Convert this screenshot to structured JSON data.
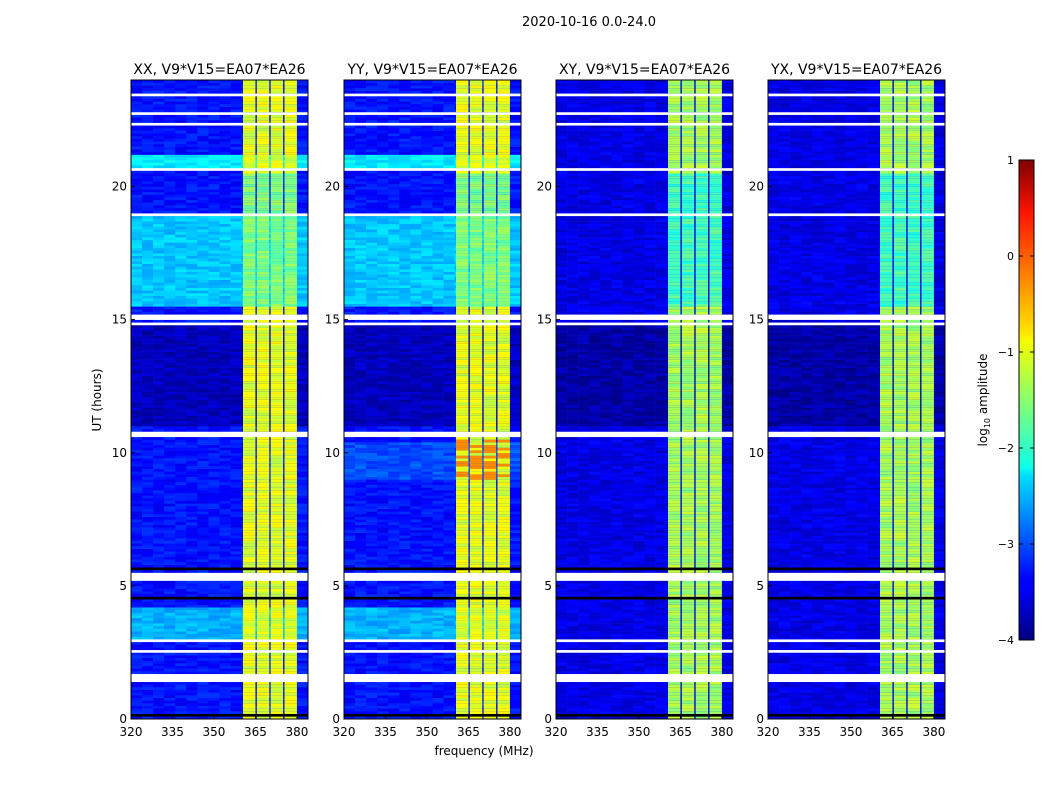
{
  "chart_data": {
    "type": "heatmap",
    "title": "2020-10-16 0.0-24.0",
    "xlabel": "frequency (MHz)",
    "ylabel": "UT (hours)",
    "xlim": [
      320,
      384
    ],
    "ylim": [
      0,
      24
    ],
    "xticks": [
      320,
      335,
      350,
      365,
      380
    ],
    "yticks": [
      0,
      5,
      10,
      15,
      20
    ],
    "colorbar": {
      "label": "log10 amplitude",
      "label_main": "log",
      "label_sub": "10",
      "label_rest": " amplitude",
      "range": [
        -4,
        1
      ],
      "ticks": [
        1,
        0,
        -1,
        -2,
        -3,
        -4
      ],
      "tick_labels": [
        "1",
        "0",
        "−1",
        "−2",
        "−3",
        "−4"
      ],
      "colormap": "jet"
    },
    "rfi_bands_mhz": [
      [
        360.5,
        365
      ],
      [
        365.5,
        370
      ],
      [
        370.5,
        375
      ],
      [
        375.5,
        380
      ]
    ],
    "flagged_times_h": [
      [
        1.4,
        1.7
      ],
      [
        2.5,
        2.6
      ],
      [
        2.95,
        3.05
      ],
      [
        4.3,
        4.35
      ],
      [
        5.2,
        5.5
      ],
      [
        7.6,
        7.65
      ],
      [
        9.8,
        9.85
      ],
      [
        10.65,
        10.8
      ],
      [
        14.85,
        14.9
      ],
      [
        15.05,
        15.2
      ],
      [
        15.5,
        15.55
      ],
      [
        18.9,
        19.0
      ],
      [
        19.3,
        19.35
      ],
      [
        20.65,
        20.75
      ],
      [
        21.8,
        21.85
      ],
      [
        22.3,
        22.4
      ],
      [
        22.75,
        22.85
      ],
      [
        23.4,
        23.5
      ]
    ],
    "zero_times_h": [
      [
        0.15,
        0.2
      ],
      [
        4.55,
        4.6
      ],
      [
        5.65,
        5.75
      ],
      [
        10.9,
        10.95
      ],
      [
        11.3,
        11.35
      ],
      [
        12.6,
        12.65
      ],
      [
        13.2,
        13.25
      ],
      [
        13.9,
        13.95
      ],
      [
        14.5,
        14.55
      ],
      [
        20.4,
        20.45
      ],
      [
        23.0,
        23.05
      ]
    ],
    "panels": [
      {
        "title": "XX, V9*V15=EA07*EA26",
        "background": -3.3,
        "rfi": -1.0,
        "regions": [
          [
            3.05,
            4.2,
            -2.5
          ],
          [
            11.8,
            12.3,
            -2.3
          ],
          [
            15.55,
            18.9,
            -2.4
          ],
          [
            20.75,
            21.2,
            -2.2
          ],
          [
            11.0,
            14.8,
            -3.7
          ]
        ]
      },
      {
        "title": "YY, V9*V15=EA07*EA26",
        "background": -3.3,
        "rfi": -1.0,
        "regions": [
          [
            3.05,
            4.2,
            -2.5
          ],
          [
            11.8,
            12.3,
            -2.3
          ],
          [
            15.55,
            18.9,
            -2.4
          ],
          [
            20.75,
            21.2,
            -2.2
          ],
          [
            11.0,
            14.8,
            -3.7
          ],
          [
            9.0,
            10.4,
            -3.0
          ]
        ]
      },
      {
        "title": "XY, V9*V15=EA07*EA26",
        "background": -3.5,
        "rfi": -1.3,
        "regions": [
          [
            11.0,
            14.8,
            -3.8
          ]
        ]
      },
      {
        "title": "YX, V9*V15=EA07*EA26",
        "background": -3.5,
        "rfi": -1.3,
        "regions": [
          [
            11.0,
            14.8,
            -3.8
          ]
        ]
      }
    ]
  }
}
